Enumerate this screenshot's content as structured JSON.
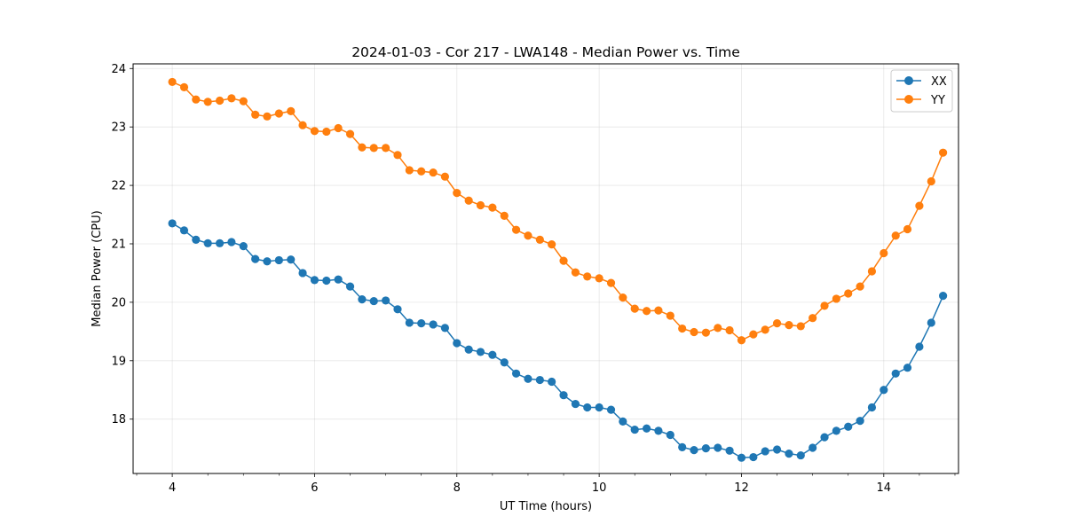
{
  "chart_data": {
    "type": "line",
    "title": "2024-01-03 - Cor 217 - LWA148 - Median Power vs. Time",
    "xlabel": "UT Time (hours)",
    "ylabel": "Median Power (CPU)",
    "xlim": [
      3.45,
      15.05
    ],
    "ylim": [
      17.07,
      24.08
    ],
    "xticks": [
      4,
      6,
      8,
      10,
      12,
      14
    ],
    "xticks_minor": [
      3.5,
      4.5,
      5,
      5.5,
      6.5,
      7,
      7.5,
      8.5,
      9,
      9.5,
      10.5,
      11,
      11.5,
      12.5,
      13,
      13.5,
      14.5,
      15
    ],
    "yticks": [
      18,
      19,
      20,
      21,
      22,
      23,
      24
    ],
    "grid": true,
    "legend": "top-right",
    "x": [
      4.0,
      4.167,
      4.333,
      4.5,
      4.667,
      4.833,
      5.0,
      5.167,
      5.333,
      5.5,
      5.667,
      5.833,
      6.0,
      6.167,
      6.333,
      6.5,
      6.667,
      6.833,
      7.0,
      7.167,
      7.333,
      7.5,
      7.667,
      7.833,
      8.0,
      8.167,
      8.333,
      8.5,
      8.667,
      8.833,
      9.0,
      9.167,
      9.333,
      9.5,
      9.667,
      9.833,
      10.0,
      10.167,
      10.333,
      10.5,
      10.667,
      10.833,
      11.0,
      11.167,
      11.333,
      11.5,
      11.667,
      11.833,
      12.0,
      12.167,
      12.333,
      12.5,
      12.667,
      12.833,
      13.0,
      13.167,
      13.333,
      13.5,
      13.667,
      13.833,
      14.0,
      14.167,
      14.333,
      14.5,
      14.667,
      14.833
    ],
    "series": [
      {
        "name": "XX",
        "color": "#1f77b4",
        "values": [
          21.35,
          21.23,
          21.07,
          21.01,
          21.01,
          21.03,
          20.96,
          20.74,
          20.7,
          20.72,
          20.73,
          20.5,
          20.38,
          20.37,
          20.39,
          20.27,
          20.05,
          20.02,
          20.03,
          19.88,
          19.65,
          19.64,
          19.62,
          19.56,
          19.3,
          19.19,
          19.15,
          19.1,
          18.97,
          18.78,
          18.69,
          18.67,
          18.64,
          18.41,
          18.26,
          18.2,
          18.2,
          18.16,
          17.96,
          17.82,
          17.84,
          17.8,
          17.73,
          17.52,
          17.47,
          17.5,
          17.51,
          17.46,
          17.34,
          17.35,
          17.45,
          17.48,
          17.41,
          17.38,
          17.51,
          17.69,
          17.8,
          17.87,
          17.97,
          18.2,
          18.5,
          18.78,
          18.88,
          19.24,
          19.65,
          20.11
        ]
      },
      {
        "name": "YY",
        "color": "#ff7f0e",
        "values": [
          23.77,
          23.68,
          23.47,
          23.43,
          23.45,
          23.49,
          23.44,
          23.21,
          23.18,
          23.23,
          23.27,
          23.03,
          22.93,
          22.92,
          22.98,
          22.88,
          22.65,
          22.64,
          22.64,
          22.52,
          22.26,
          22.24,
          22.22,
          22.15,
          21.87,
          21.74,
          21.66,
          21.62,
          21.48,
          21.24,
          21.14,
          21.07,
          20.99,
          20.71,
          20.51,
          20.44,
          20.41,
          20.33,
          20.08,
          19.89,
          19.85,
          19.86,
          19.77,
          19.55,
          19.49,
          19.48,
          19.56,
          19.52,
          19.35,
          19.45,
          19.53,
          19.64,
          19.61,
          19.59,
          19.73,
          19.94,
          20.06,
          20.15,
          20.27,
          20.53,
          20.84,
          21.14,
          21.25,
          21.65,
          22.07,
          22.56
        ]
      }
    ]
  }
}
